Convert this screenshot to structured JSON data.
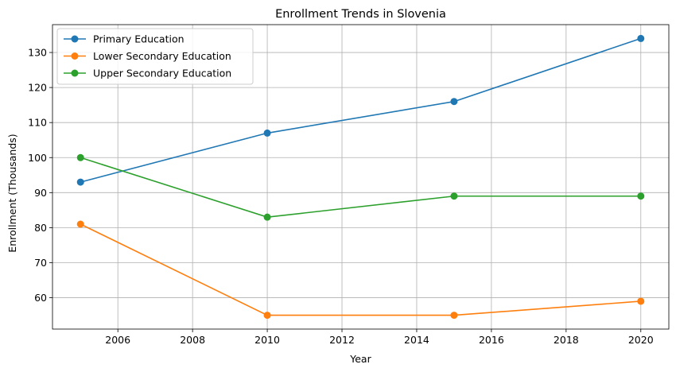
{
  "chart_data": {
    "type": "line",
    "title": "Enrollment Trends in Slovenia",
    "xlabel": "Year",
    "ylabel": "Enrollment (Thousands)",
    "x": [
      2005,
      2010,
      2015,
      2020
    ],
    "xlim": [
      2004.25,
      2020.75
    ],
    "ylim": [
      51.05,
      137.95
    ],
    "xticks": [
      2006,
      2008,
      2010,
      2012,
      2014,
      2016,
      2018,
      2020
    ],
    "yticks": [
      60,
      70,
      80,
      90,
      100,
      110,
      120,
      130
    ],
    "grid": true,
    "legend_position": "top-left",
    "series": [
      {
        "name": "Primary Education",
        "color": "#1f77b4",
        "values": [
          93,
          107,
          116,
          134
        ]
      },
      {
        "name": "Lower Secondary Education",
        "color": "#ff7f0e",
        "values": [
          81,
          55,
          55,
          59
        ]
      },
      {
        "name": "Upper Secondary Education",
        "color": "#2ca02c",
        "values": [
          100,
          83,
          89,
          89
        ]
      }
    ]
  }
}
